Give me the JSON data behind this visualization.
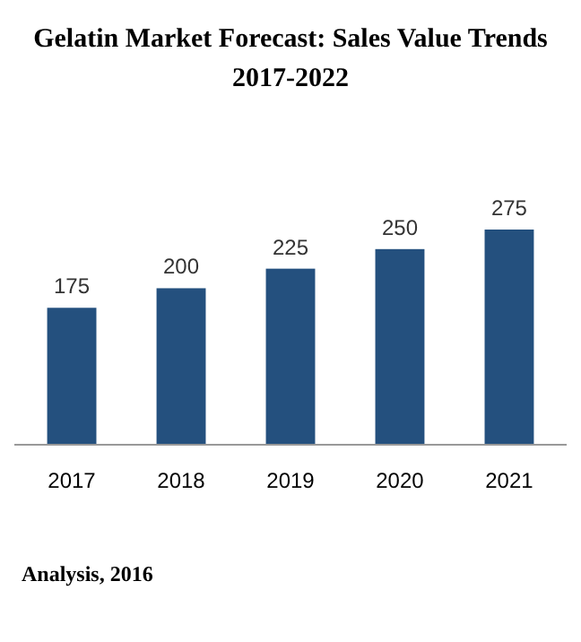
{
  "chart_data": {
    "type": "bar",
    "title": "Gelatin Market Forecast: Sales Value Trends 2017-2022",
    "categories": [
      "2017",
      "2018",
      "2019",
      "2020",
      "2021"
    ],
    "values": [
      175,
      200,
      225,
      250,
      275
    ],
    "color": "#24507e",
    "data_labels": true,
    "annotations": [
      "Analysis, 2016"
    ]
  }
}
